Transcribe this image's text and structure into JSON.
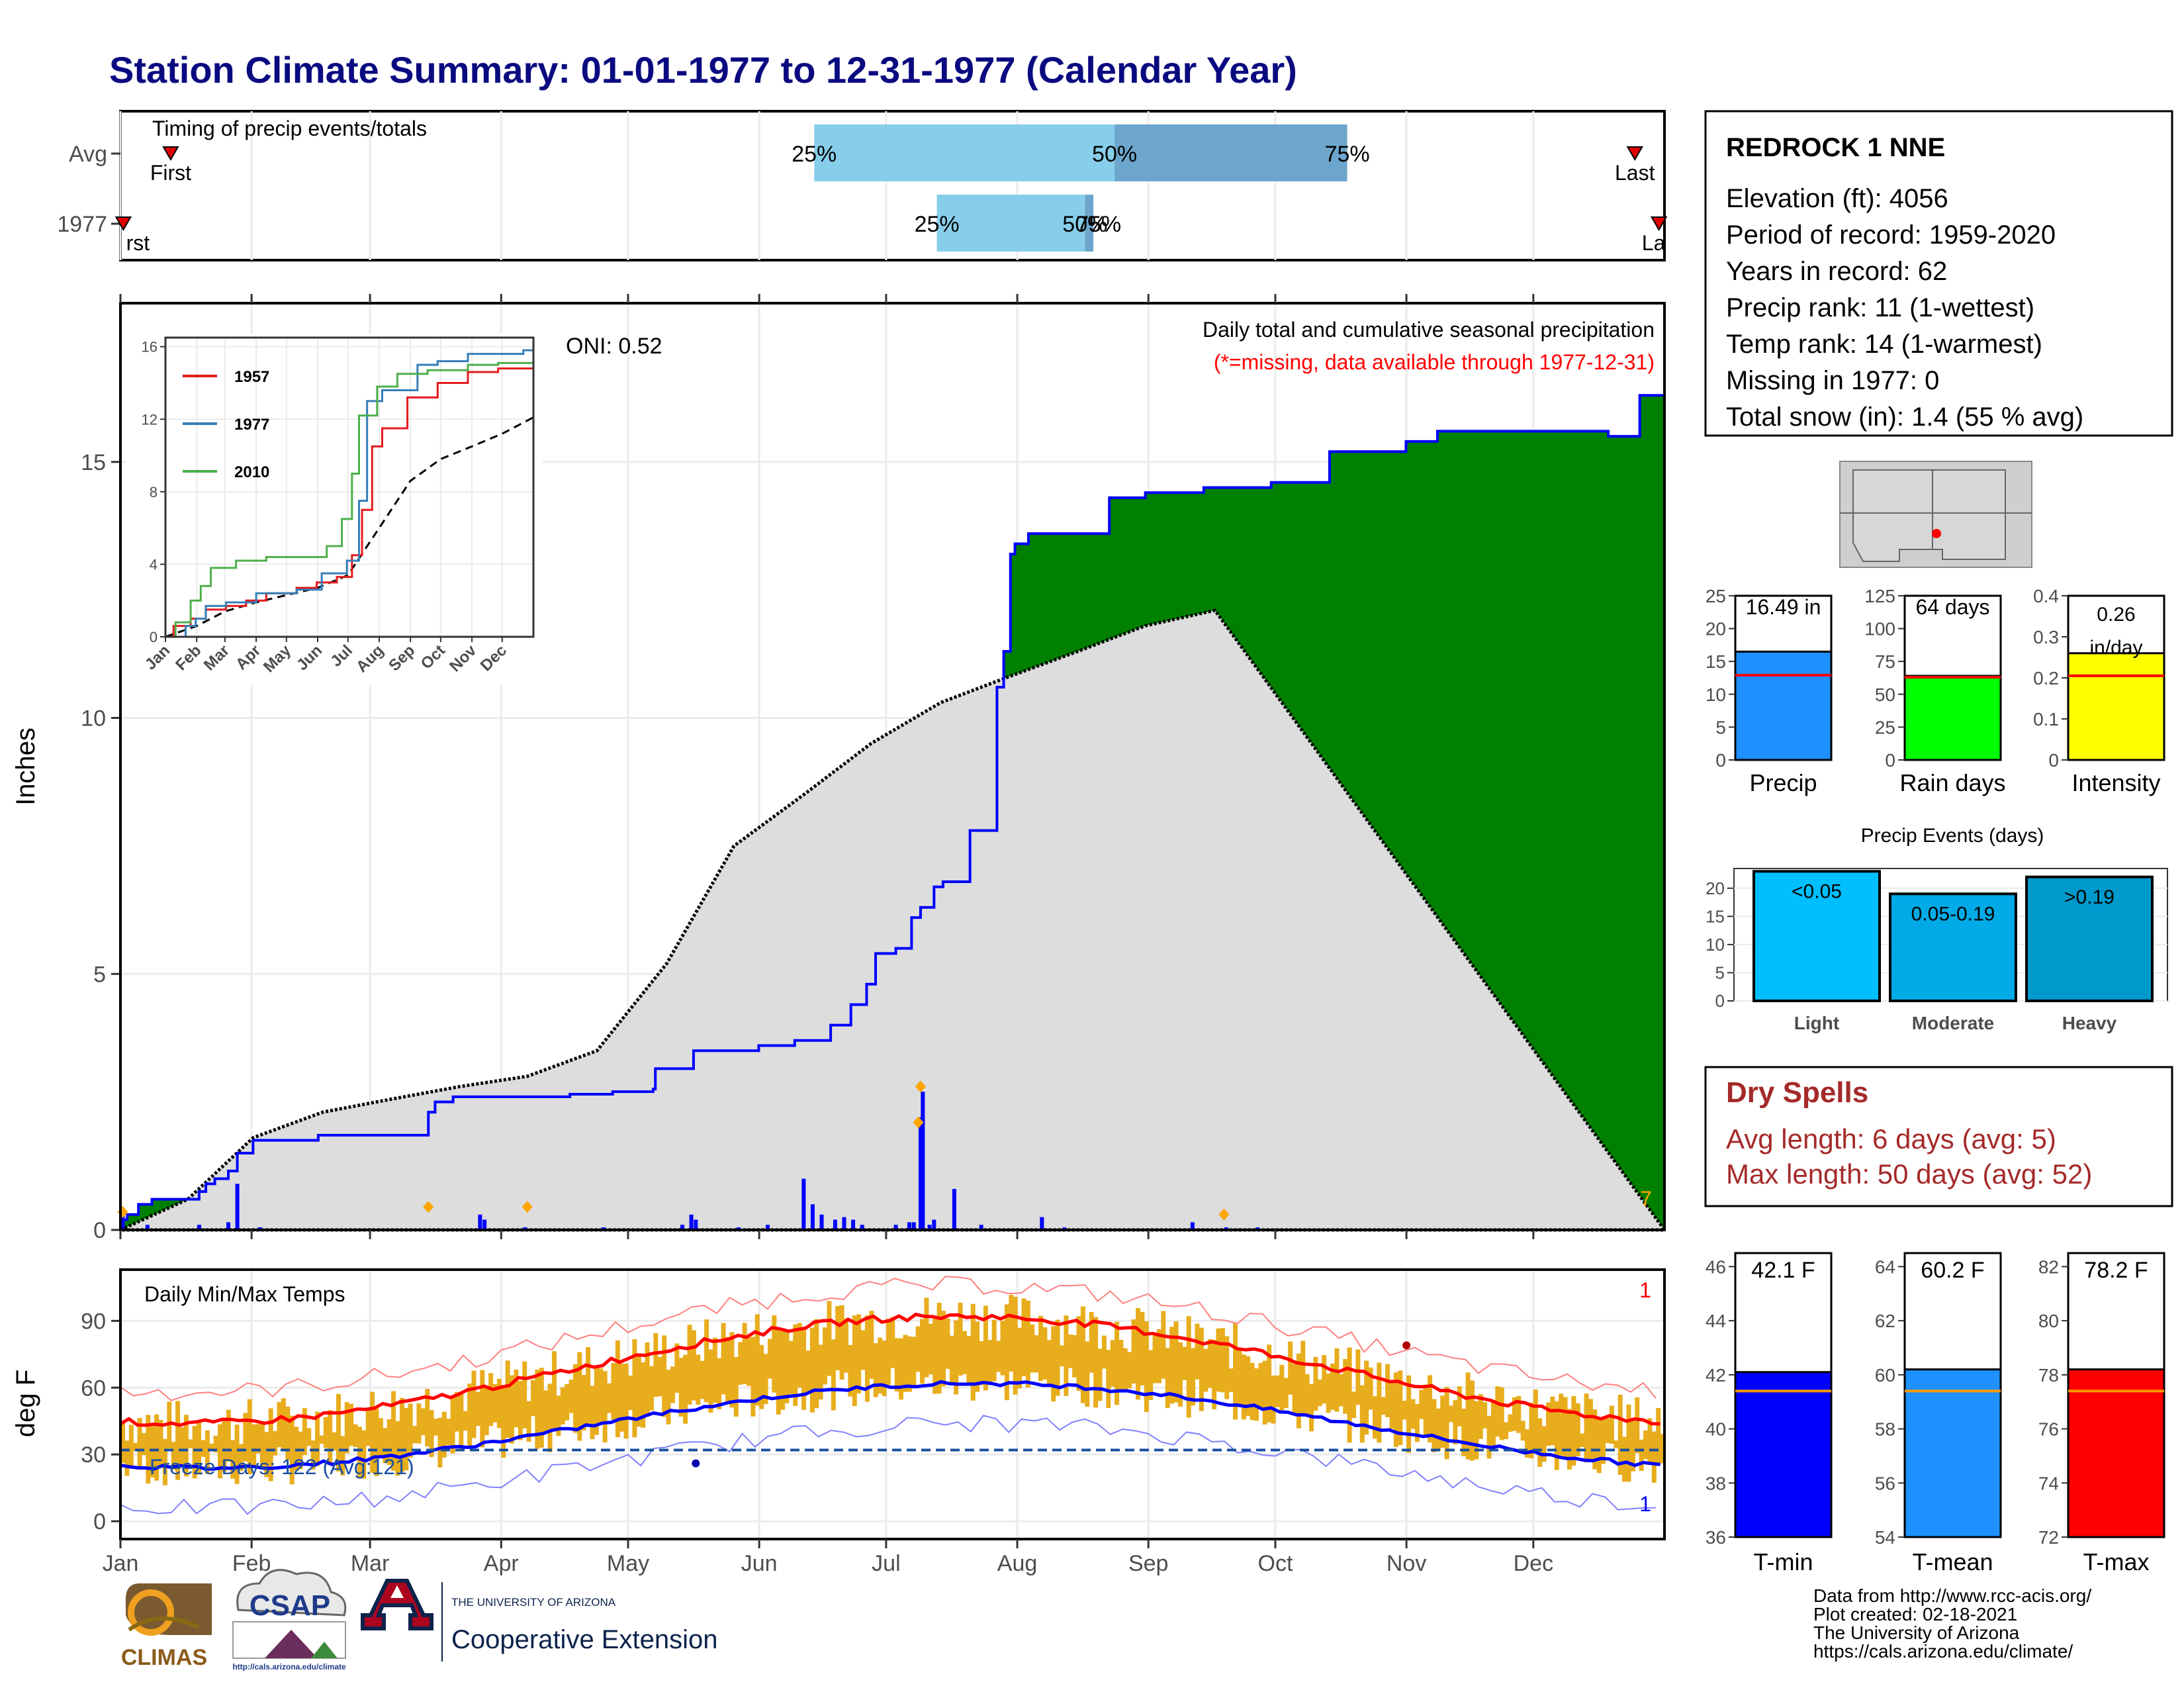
{
  "title": "Station Climate Summary: 01-01-1977 to 12-31-1977 (Calendar Year)",
  "months": [
    "Jan",
    "Feb",
    "Mar",
    "Apr",
    "May",
    "Jun",
    "Jul",
    "Aug",
    "Sep",
    "Oct",
    "Nov",
    "Dec"
  ],
  "timing": {
    "label": "Timing of precip events/totals",
    "rows": [
      "Avg",
      "1977"
    ],
    "first_label": "First",
    "last_label": "Last",
    "first_label_1977": "rst",
    "last_label_1977": "La",
    "pct_labels": [
      "25%",
      "50%",
      "75%"
    ],
    "avg_pct_days": [
      164,
      235,
      290
    ],
    "y1977_pct_days": [
      193,
      228,
      230
    ],
    "avg_first_day": 10,
    "avg_last_day": 358,
    "y1977_first_day": 1,
    "y1977_last_day": 364,
    "y1977_pct_text": [
      "25%",
      "50%",
      "75%"
    ]
  },
  "precip": {
    "ylabel": "Inches",
    "yticks": [
      0,
      5,
      10,
      15
    ],
    "ylim": [
      0,
      18.1
    ],
    "oni": "ONI: 0.52",
    "header": "Daily total and cumulative seasonal precipitation",
    "missing_note": "(*=missing, data available through 1977-12-31)",
    "count_label": "7",
    "cum_1977": [
      [
        0,
        0.2
      ],
      [
        3,
        0.3
      ],
      [
        8,
        0.5
      ],
      [
        14,
        0.6
      ],
      [
        35,
        0.75
      ],
      [
        38,
        0.9
      ],
      [
        42,
        1.0
      ],
      [
        48,
        1.15
      ],
      [
        52,
        1.5
      ],
      [
        59,
        1.75
      ],
      [
        88,
        1.85
      ],
      [
        90,
        1.85
      ],
      [
        125,
        1.85
      ],
      [
        137,
        2.3
      ],
      [
        140,
        2.5
      ],
      [
        148,
        2.6
      ],
      [
        170,
        2.6
      ],
      [
        200,
        2.65
      ],
      [
        219,
        2.7
      ],
      [
        237,
        2.75
      ],
      [
        238,
        3.15
      ],
      [
        255,
        3.5
      ],
      [
        270,
        3.5
      ],
      [
        284,
        3.6
      ],
      [
        300,
        3.7
      ],
      [
        312,
        3.7
      ],
      [
        316,
        4.0
      ],
      [
        325,
        4.4
      ],
      [
        332,
        4.8
      ],
      [
        336,
        5.4
      ],
      [
        345,
        5.5
      ],
      [
        352,
        6.1
      ],
      [
        356,
        6.3
      ],
      [
        362,
        6.7
      ],
      [
        366,
        6.8
      ],
      [
        378,
        7.8
      ],
      [
        386,
        7.8
      ],
      [
        390,
        10.6
      ],
      [
        393,
        11.3
      ],
      [
        396,
        13.2
      ],
      [
        398,
        13.4
      ],
      [
        404,
        13.6
      ],
      [
        430,
        13.6
      ],
      [
        440,
        14.3
      ],
      [
        456,
        14.4
      ],
      [
        482,
        14.5
      ],
      [
        512,
        14.6
      ],
      [
        538,
        15.2
      ],
      [
        572,
        15.4
      ],
      [
        586,
        15.6
      ],
      [
        662,
        15.5
      ],
      [
        676,
        16.3
      ],
      [
        687,
        16.5
      ]
    ],
    "avg_cum": [
      [
        0,
        0
      ],
      [
        30,
        0.6
      ],
      [
        59,
        1.8
      ],
      [
        90,
        2.3
      ],
      [
        120,
        2.55
      ],
      [
        151,
        2.8
      ],
      [
        181,
        3.0
      ],
      [
        212,
        3.5
      ],
      [
        243,
        5.2
      ],
      [
        273,
        7.5
      ],
      [
        304,
        8.5
      ],
      [
        334,
        9.5
      ],
      [
        365,
        10.3
      ],
      [
        395,
        10.8
      ],
      [
        426,
        11.3
      ],
      [
        456,
        11.8
      ],
      [
        487,
        12.1
      ]
    ],
    "daily_bars": [
      [
        1,
        0.35
      ],
      [
        12,
        0.1
      ],
      [
        35,
        0.1
      ],
      [
        48,
        0.15
      ],
      [
        52,
        0.9
      ],
      [
        62,
        0.05
      ],
      [
        160,
        0.3
      ],
      [
        162,
        0.2
      ],
      [
        180,
        0.05
      ],
      [
        215,
        0.05
      ],
      [
        250,
        0.1
      ],
      [
        254,
        0.3
      ],
      [
        256,
        0.2
      ],
      [
        275,
        0.05
      ],
      [
        288,
        0.1
      ],
      [
        304,
        1.0
      ],
      [
        308,
        0.5
      ],
      [
        312,
        0.3
      ],
      [
        318,
        0.2
      ],
      [
        322,
        0.25
      ],
      [
        326,
        0.2
      ],
      [
        330,
        0.1
      ],
      [
        345,
        0.1
      ],
      [
        351,
        0.15
      ],
      [
        353,
        0.15
      ],
      [
        356,
        2.2
      ],
      [
        357,
        2.7
      ],
      [
        360,
        0.1
      ],
      [
        371,
        0.8
      ],
      [
        383,
        0.1
      ],
      [
        410,
        0.25
      ],
      [
        420,
        0.05
      ],
      [
        477,
        0.15
      ],
      [
        492,
        0.05
      ],
      [
        506,
        0.05
      ],
      [
        362,
        0.2
      ]
    ],
    "flags": [
      [
        1,
        0.35
      ],
      [
        137,
        0.45
      ],
      [
        181,
        0.45
      ],
      [
        355,
        2.1
      ],
      [
        356,
        2.8
      ],
      [
        491,
        0.3
      ]
    ],
    "colors": {
      "above": "#008000",
      "below": "#8b4513",
      "avg_fill": "#dddddd",
      "bar": "#0000ff",
      "line": "#0000ff"
    }
  },
  "inset": {
    "yticks": [
      0,
      4,
      8,
      12,
      16
    ],
    "legend": [
      {
        "year": "1957",
        "color": "#e41a1c"
      },
      {
        "year": "1977",
        "color": "#377eb8"
      },
      {
        "year": "2010",
        "color": "#4daf4a"
      }
    ]
  },
  "temps": {
    "label": "Daily Min/Max Temps",
    "ylabel": "deg F",
    "yticks": [
      0,
      30,
      60,
      90
    ],
    "ylim": [
      -8,
      113
    ],
    "freeze": "Freeze Days: 122 (Avg:121)",
    "count_max": "1",
    "count_min": "1",
    "freeze_line": 32,
    "colors": {
      "range": "#e8ad1c",
      "max": "#ff0000",
      "min": "#0000ff",
      "freeze": "#1a4fa0"
    }
  },
  "station": {
    "name": "REDROCK 1 NNE",
    "lines": [
      "Elevation (ft): 4056",
      "Period of record: 1959-2020",
      "Years in record: 62",
      "Precip rank: 11 (1-wettest)",
      "Temp rank: 14 (1-warmest)",
      "Missing in 1977: 0",
      "Total snow (in): 1.4 (55 % avg)"
    ]
  },
  "mini_precip": [
    {
      "label": "Precip",
      "value": 16.49,
      "text": "16.49 in",
      "avg": 12.9,
      "ymax": 25,
      "ticks": [
        0,
        5,
        10,
        15,
        20,
        25
      ],
      "color": "#1e90ff"
    },
    {
      "label": "Rain days",
      "value": 64,
      "text": "64 days",
      "avg": 63,
      "ymax": 125,
      "ticks": [
        0,
        25,
        50,
        75,
        100,
        125
      ],
      "color": "#00ff00"
    },
    {
      "label": "Intensity",
      "value": 0.26,
      "text": "0.26 in/day",
      "avg": 0.205,
      "ymax": 0.4,
      "ticks": [
        0.0,
        0.1,
        0.2,
        0.3,
        0.4
      ],
      "color": "#ffff00"
    }
  ],
  "events": {
    "title": "Precip Events (days)",
    "ticks": [
      0,
      5,
      10,
      15,
      20
    ],
    "ymax": 23.5,
    "bars": [
      {
        "category": "Light",
        "text": "<0.05",
        "value": 23,
        "color": "#00bfff"
      },
      {
        "category": "Moderate",
        "text": "0.05-0.19",
        "value": 19,
        "color": "#00aae6"
      },
      {
        "category": "Heavy",
        "text": ">0.19",
        "value": 22,
        "color": "#0099cc"
      }
    ]
  },
  "dry": {
    "title": "Dry Spells",
    "avg": "Avg length: 6 days (avg: 5)",
    "max": "Max length: 50 days (avg: 52)",
    "color": "#a52a2a"
  },
  "mini_temps": [
    {
      "label": "T-min",
      "value": 42.1,
      "text": "42.1 F",
      "avg": 41.4,
      "ymin": 36,
      "ymax": 46.5,
      "ticks": [
        36,
        38,
        40,
        42,
        44,
        46
      ],
      "color": "#0000ff"
    },
    {
      "label": "T-mean",
      "value": 60.2,
      "text": "60.2 F",
      "avg": 59.4,
      "ymin": 54,
      "ymax": 64.5,
      "ticks": [
        54,
        56,
        58,
        60,
        62,
        64
      ],
      "color": "#1e90ff"
    },
    {
      "label": "T-max",
      "value": 78.2,
      "text": "78.2 F",
      "avg": 77.4,
      "ymin": 72,
      "ymax": 82.5,
      "ticks": [
        72,
        74,
        76,
        78,
        80,
        82
      ],
      "color": "#ff0000"
    }
  ],
  "footer": {
    "line1": "Data from http://www.rcc-acis.org/",
    "line2": "Plot created: 02-18-2021",
    "line3": "The University of Arizona",
    "line4": "https://cals.arizona.edu/climate/"
  },
  "logos": {
    "climas": "CLIMAS",
    "csap": "CSAP",
    "csap_url": "http://cals.arizona.edu/climate",
    "ua_top": "THE UNIVERSITY OF ARIZONA",
    "ua_main": "Cooperative Extension"
  }
}
